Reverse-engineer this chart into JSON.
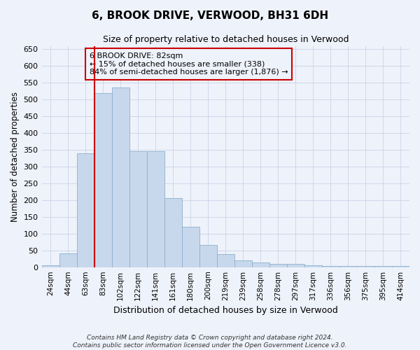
{
  "title_line1": "6, BROOK DRIVE, VERWOOD, BH31 6DH",
  "title_line2": "Size of property relative to detached houses in Verwood",
  "xlabel": "Distribution of detached houses by size in Verwood",
  "ylabel": "Number of detached properties",
  "categories": [
    "24sqm",
    "44sqm",
    "63sqm",
    "83sqm",
    "102sqm",
    "122sqm",
    "141sqm",
    "161sqm",
    "180sqm",
    "200sqm",
    "219sqm",
    "239sqm",
    "258sqm",
    "278sqm",
    "297sqm",
    "317sqm",
    "336sqm",
    "356sqm",
    "375sqm",
    "395sqm",
    "414sqm"
  ],
  "values": [
    5,
    42,
    340,
    520,
    535,
    345,
    345,
    205,
    120,
    67,
    38,
    20,
    13,
    10,
    10,
    5,
    3,
    3,
    3,
    3,
    3
  ],
  "bar_color": "#c8d8ec",
  "bar_edge_color": "#8ab0cc",
  "grid_color": "#c8d4e8",
  "annotation_box_color": "#cc0000",
  "property_line_color": "#cc0000",
  "annotation_title": "6 BROOK DRIVE: 82sqm",
  "annotation_line1": "← 15% of detached houses are smaller (338)",
  "annotation_line2": "84% of semi-detached houses are larger (1,876) →",
  "footer_line1": "Contains HM Land Registry data © Crown copyright and database right 2024.",
  "footer_line2": "Contains public sector information licensed under the Open Government Licence v3.0.",
  "ylim": [
    0,
    660
  ],
  "yticks": [
    0,
    50,
    100,
    150,
    200,
    250,
    300,
    350,
    400,
    450,
    500,
    550,
    600,
    650
  ],
  "background_color": "#eef2fa"
}
